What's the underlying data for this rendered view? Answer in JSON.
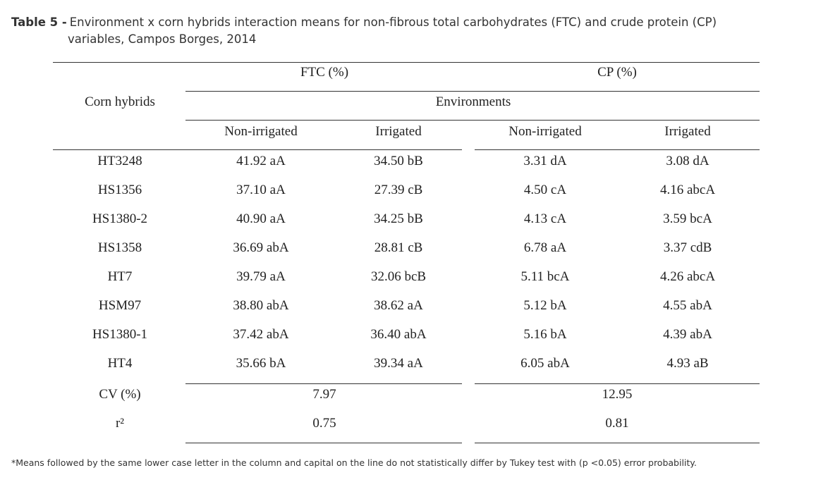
{
  "caption": {
    "label": "Table 5 -",
    "line1": "Environment x corn hybrids interaction means for non-fibrous total carbohydrates (FTC) and crude protein (CP)",
    "line2": "variables, Campos Borges, 2014"
  },
  "table": {
    "row_header": "Corn hybrids",
    "group_ftc": "FTC (%)",
    "group_cp": "CP (%)",
    "environments": "Environments",
    "col_ftc_nonirr": "Non-irrigated",
    "col_ftc_irr": "Irrigated",
    "col_cp_nonirr": "Non-irrigated",
    "col_cp_irr": "Irrigated",
    "rows": [
      {
        "hybrid": "HT3248",
        "ftc_non": "41.92 aA",
        "ftc_irr": "34.50 bB",
        "cp_non": "3.31 dA",
        "cp_irr": "3.08 dA"
      },
      {
        "hybrid": "HS1356",
        "ftc_non": "37.10 aA",
        "ftc_irr": "27.39 cB",
        "cp_non": "4.50 cA",
        "cp_irr": "4.16 abcA"
      },
      {
        "hybrid": "HS1380-2",
        "ftc_non": "40.90 aA",
        "ftc_irr": "34.25 bB",
        "cp_non": "4.13 cA",
        "cp_irr": "3.59 bcA"
      },
      {
        "hybrid": "HS1358",
        "ftc_non": "36.69 abA",
        "ftc_irr": "28.81 cB",
        "cp_non": "6.78 aA",
        "cp_irr": "3.37 cdB"
      },
      {
        "hybrid": "HT7",
        "ftc_non": "39.79 aA",
        "ftc_irr": "32.06 bcB",
        "cp_non": "5.11 bcA",
        "cp_irr": "4.26 abcA"
      },
      {
        "hybrid": "HSM97",
        "ftc_non": "38.80 abA",
        "ftc_irr": "38.62 aA",
        "cp_non": "5.12 bA",
        "cp_irr": "4.55 abA"
      },
      {
        "hybrid": "HS1380-1",
        "ftc_non": "37.42 abA",
        "ftc_irr": "36.40 abA",
        "cp_non": "5.16 bA",
        "cp_irr": "4.39 abA"
      },
      {
        "hybrid": "HT4",
        "ftc_non": "35.66 bA",
        "ftc_irr": "39.34 aA",
        "cp_non": "6.05 abA",
        "cp_irr": "4.93 aB"
      }
    ],
    "cv_label": "CV (%)",
    "cv_ftc": "7.97",
    "cv_cp": "12.95",
    "r2_label": "r²",
    "r2_ftc": "0.75",
    "r2_cp": "0.81"
  },
  "footnote": "*Means followed by the same lower case letter in the column and capital on the line do not statistically differ by Tukey test with (p <0.05) error probability."
}
